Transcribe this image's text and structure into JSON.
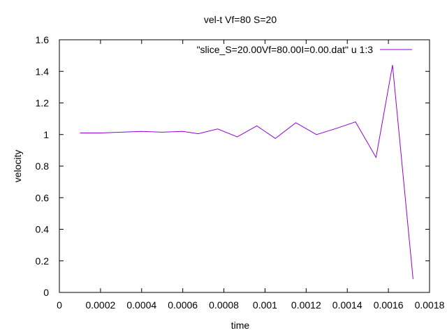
{
  "chart_data": {
    "type": "line",
    "title": "vel-t Vf=80 S=20",
    "xlabel": "time",
    "ylabel": "velocity",
    "xlim": [
      0,
      0.0018
    ],
    "ylim": [
      0,
      1.6
    ],
    "xticks": [
      0,
      0.0002,
      0.0004,
      0.0006,
      0.0008,
      0.001,
      0.0012,
      0.0014,
      0.0016,
      0.0018
    ],
    "xtick_labels": [
      "0",
      "0.0002",
      "0.0004",
      "0.0006",
      "0.0008",
      "0.001",
      "0.0012",
      "0.0014",
      "0.0016",
      "0.0018"
    ],
    "yticks": [
      0,
      0.2,
      0.4,
      0.6,
      0.8,
      1,
      1.2,
      1.4,
      1.6
    ],
    "ytick_labels": [
      "0",
      "0.2",
      "0.4",
      "0.6",
      "0.8",
      "1",
      "1.2",
      "1.4",
      "1.6"
    ],
    "grid": false,
    "legend_position": "top-right",
    "series": [
      {
        "name": "\"slice_S=20.00Vf=80.00I=0.00.dat\" u 1:3",
        "color": "#9400d3",
        "x": [
          0.0001,
          0.0002,
          0.0003,
          0.0004,
          0.0005,
          0.0006,
          0.000675,
          0.00077,
          0.000865,
          0.00096,
          0.00105,
          0.00115,
          0.00125,
          0.00135,
          0.00144,
          0.00154,
          0.00162,
          0.00172
        ],
        "y": [
          1.01,
          1.01,
          1.015,
          1.02,
          1.015,
          1.02,
          1.005,
          1.035,
          0.985,
          1.055,
          0.975,
          1.075,
          1.0,
          1.04,
          1.08,
          0.855,
          1.44,
          0.085
        ]
      }
    ]
  }
}
